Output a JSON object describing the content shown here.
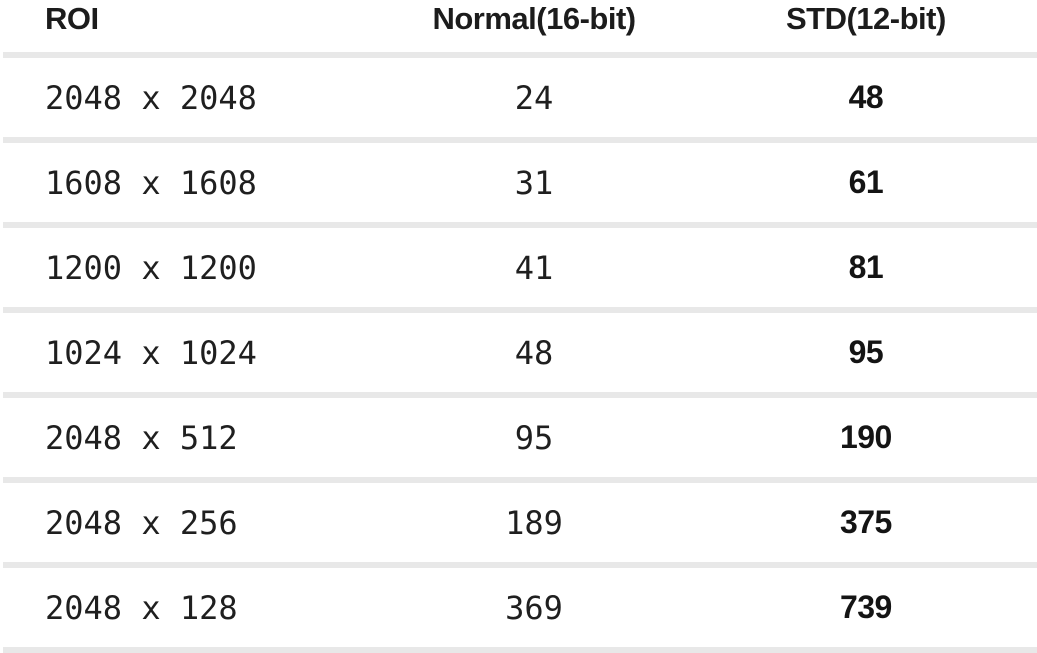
{
  "table": {
    "columns": [
      "ROI",
      "Normal(16-bit)",
      "STD(12-bit)"
    ],
    "rows": [
      [
        "2048 x 2048",
        "24",
        "48"
      ],
      [
        "1608 x 1608",
        "31",
        "61"
      ],
      [
        "1200 x 1200",
        "41",
        "81"
      ],
      [
        "1024 x 1024",
        "48",
        "95"
      ],
      [
        "2048 x 512",
        "95",
        "190"
      ],
      [
        "2048 x 256",
        "189",
        "375"
      ],
      [
        "2048 x 128",
        "369",
        "739"
      ]
    ]
  },
  "colors": {
    "background": "#ffffff",
    "text": "#1c1c1c",
    "separator": "#e8e8e8"
  },
  "chart_data": {
    "type": "table",
    "columns": [
      "ROI",
      "Normal(16-bit)",
      "STD(12-bit)"
    ],
    "rows": [
      {
        "roi": "2048 x 2048",
        "normal_16bit": 24,
        "std_12bit": 48
      },
      {
        "roi": "1608 x 1608",
        "normal_16bit": 31,
        "std_12bit": 61
      },
      {
        "roi": "1200 x 1200",
        "normal_16bit": 41,
        "std_12bit": 81
      },
      {
        "roi": "1024 x 1024",
        "normal_16bit": 48,
        "std_12bit": 95
      },
      {
        "roi": "2048 x 512",
        "normal_16bit": 95,
        "std_12bit": 190
      },
      {
        "roi": "2048 x 256",
        "normal_16bit": 189,
        "std_12bit": 375
      },
      {
        "roi": "2048 x 128",
        "normal_16bit": 369,
        "std_12bit": 739
      }
    ],
    "notes": "STD(12-bit) values are displayed in bold; roughly double the Normal(16-bit) values"
  }
}
